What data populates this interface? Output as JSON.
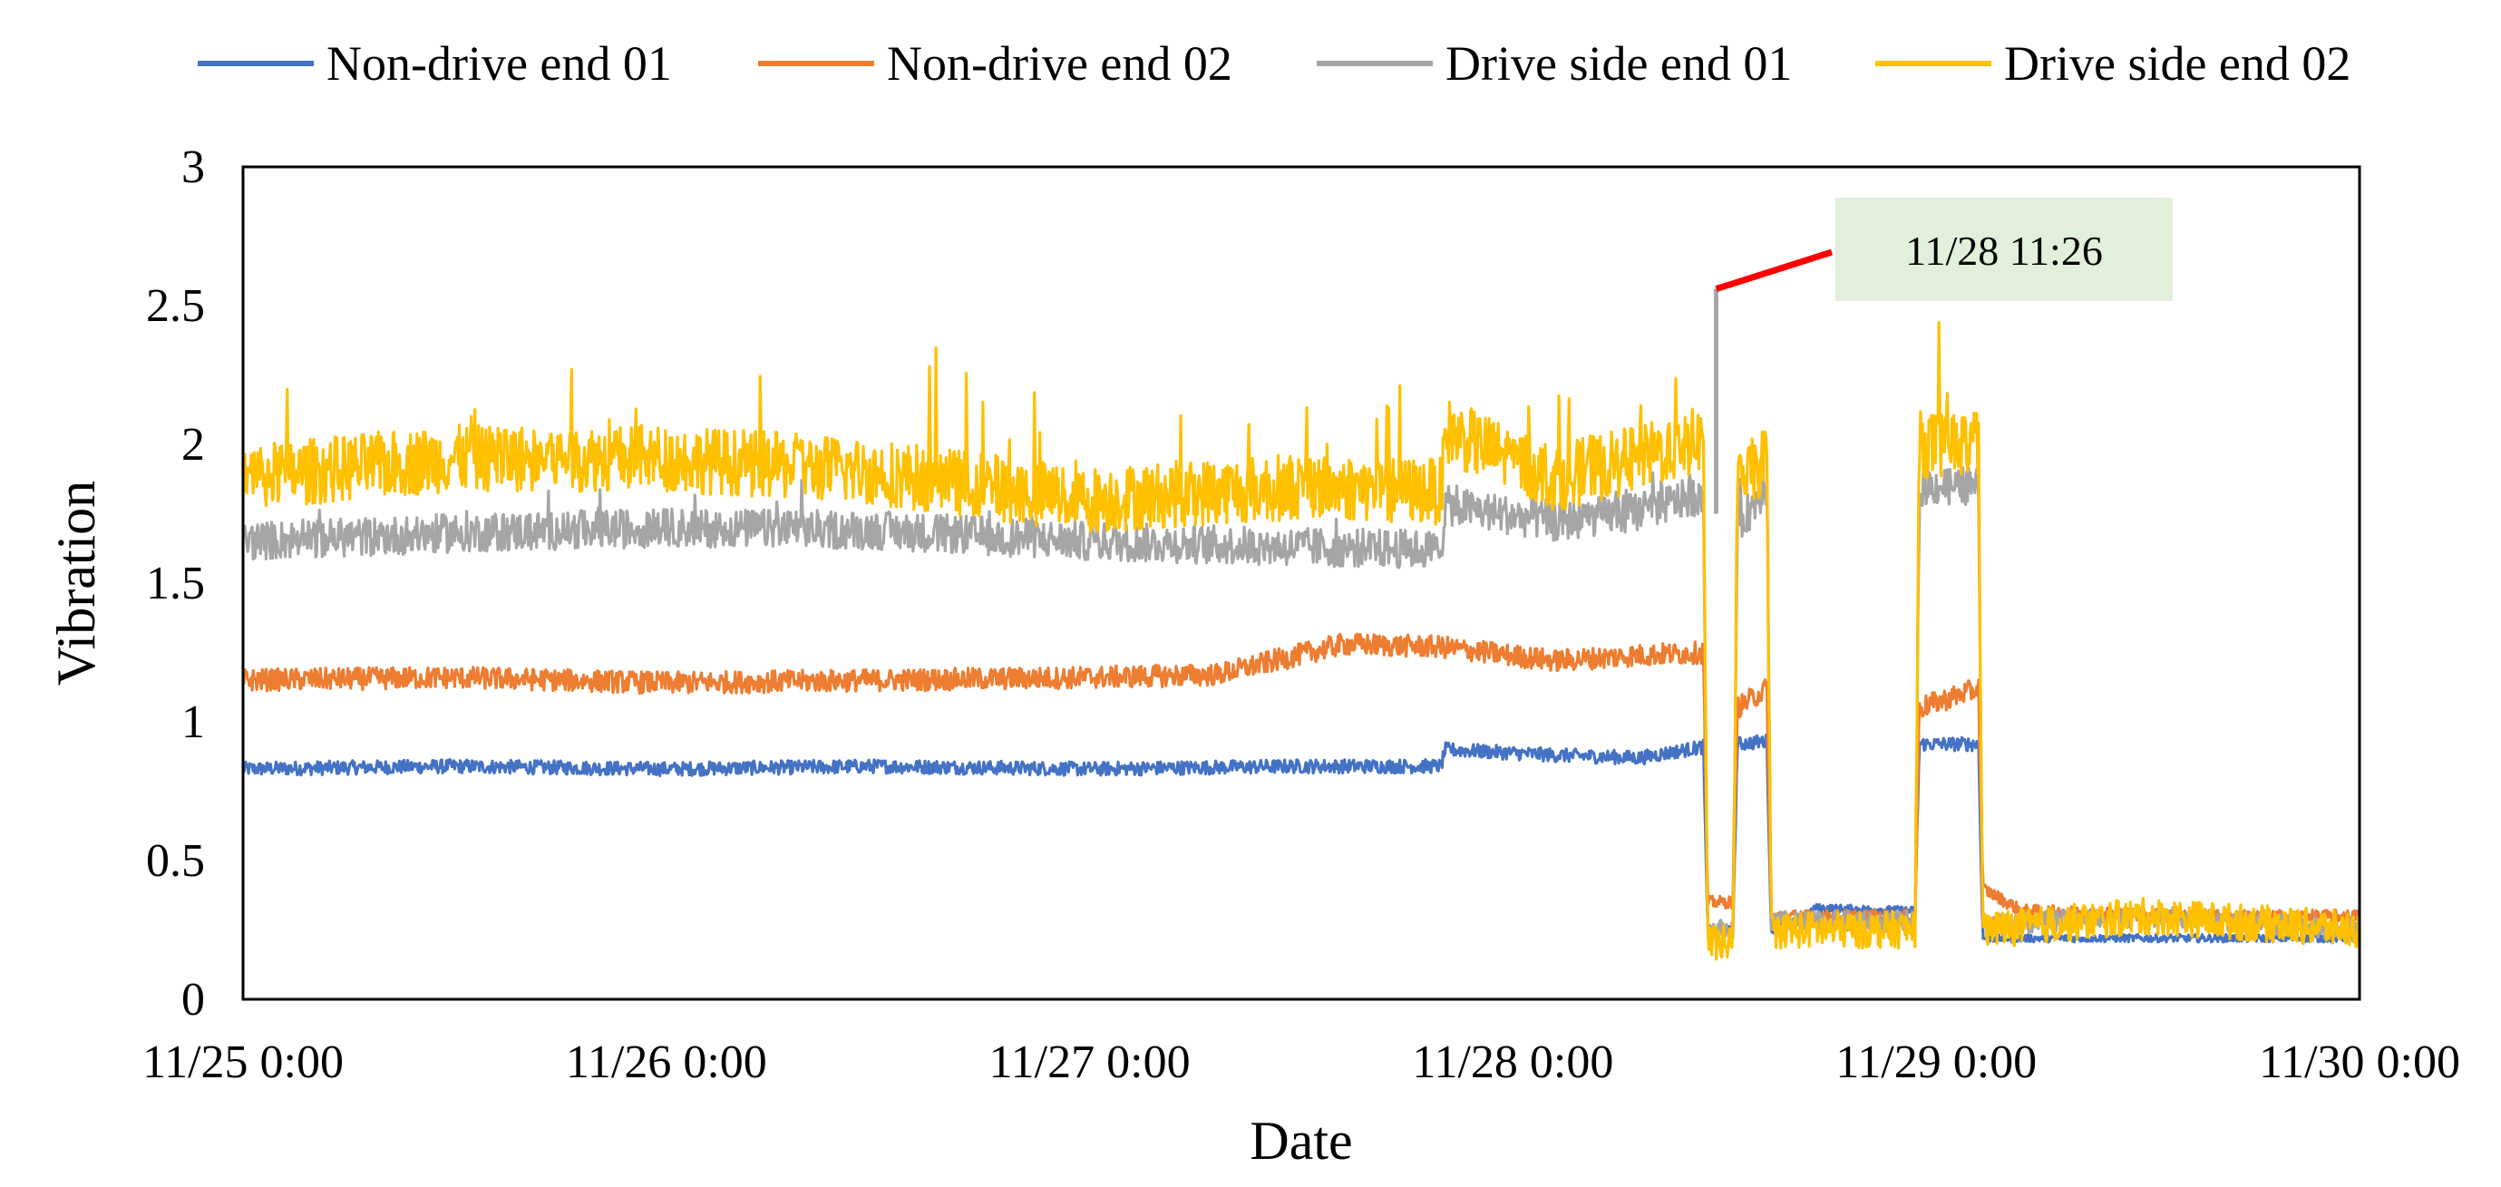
{
  "chart_data": {
    "type": "line",
    "title": "",
    "xlabel": "Date",
    "ylabel": "Vibration",
    "ylim": [
      0,
      3
    ],
    "yticks": [
      "0",
      "0.5",
      "1",
      "1.5",
      "2",
      "2.5",
      "3"
    ],
    "xlim_days": [
      0,
      5
    ],
    "xticks": [
      "11/25 0:00",
      "11/26 0:00",
      "11/27 0:00",
      "11/28 0:00",
      "11/29 0:00",
      "11/30 0:00"
    ],
    "grid": false,
    "legend_position": "top",
    "series": [
      {
        "name": "Non-drive end 01",
        "color": "#4472C4",
        "x_days": [
          0,
          0.5,
          1,
          1.5,
          2,
          2.5,
          2.83,
          2.84,
          3.1,
          3.3,
          3.45,
          3.46,
          3.52,
          3.53,
          3.6,
          3.61,
          3.7,
          3.71,
          3.95,
          3.96,
          4.1,
          4.11,
          4.5,
          5
        ],
        "values": [
          0.83,
          0.84,
          0.83,
          0.84,
          0.83,
          0.84,
          0.84,
          0.9,
          0.88,
          0.87,
          0.91,
          0.25,
          0.25,
          0.92,
          0.93,
          0.25,
          0.3,
          0.33,
          0.32,
          0.92,
          0.92,
          0.22,
          0.22,
          0.22
        ],
        "noise": 0.025
      },
      {
        "name": "Non-drive end 02",
        "color": "#ED7D31",
        "x_days": [
          0,
          0.5,
          1,
          1.5,
          2,
          2.3,
          2.6,
          2.83,
          3.1,
          3.3,
          3.45,
          3.46,
          3.52,
          3.53,
          3.6,
          3.61,
          3.7,
          3.71,
          3.95,
          3.96,
          4.1,
          4.11,
          4.2,
          4.6,
          5
        ],
        "values": [
          1.15,
          1.16,
          1.14,
          1.15,
          1.16,
          1.17,
          1.28,
          1.27,
          1.22,
          1.24,
          1.25,
          0.35,
          0.35,
          1.05,
          1.12,
          0.3,
          0.3,
          0.3,
          0.3,
          1.05,
          1.12,
          0.4,
          0.32,
          0.3,
          0.3
        ],
        "noise": 0.04
      },
      {
        "name": "Drive side end 01",
        "color": "#A5A5A5",
        "x_days": [
          0,
          0.5,
          1,
          1.5,
          2,
          2.5,
          2.83,
          2.84,
          3.1,
          3.3,
          3.45,
          3.46,
          3.52,
          3.53,
          3.6,
          3.61,
          3.7,
          3.71,
          3.95,
          3.96,
          4.1,
          4.11,
          4.5,
          5
        ],
        "values": [
          1.65,
          1.68,
          1.7,
          1.69,
          1.65,
          1.63,
          1.62,
          1.78,
          1.72,
          1.76,
          1.82,
          0.25,
          0.25,
          1.7,
          1.85,
          0.28,
          0.28,
          0.28,
          0.28,
          1.85,
          1.85,
          0.27,
          0.3,
          0.25
        ],
        "noise": 0.07
      },
      {
        "name": "Drive side end 02",
        "color": "#FFC000",
        "x_days": [
          0,
          0.5,
          1,
          1.5,
          2,
          2.5,
          2.83,
          2.84,
          3.1,
          3.3,
          3.45,
          3.46,
          3.52,
          3.53,
          3.6,
          3.61,
          3.7,
          3.71,
          3.95,
          3.96,
          4.1,
          4.11,
          4.5,
          5
        ],
        "values": [
          1.88,
          1.95,
          1.95,
          1.9,
          1.8,
          1.85,
          1.83,
          2.05,
          1.88,
          1.95,
          2.02,
          0.2,
          0.2,
          1.85,
          1.95,
          0.25,
          0.25,
          0.25,
          0.25,
          2.0,
          2.0,
          0.25,
          0.3,
          0.25
        ],
        "noise": 0.12
      }
    ],
    "peak": {
      "x_days": 3.48,
      "value": 2.56,
      "color": "#A5A5A5"
    },
    "annotation": {
      "text": "11/28 11:26",
      "x_days": 3.48,
      "value": 2.56,
      "leader_color": "#FF0000",
      "box_color": "#E2EFDA"
    }
  }
}
